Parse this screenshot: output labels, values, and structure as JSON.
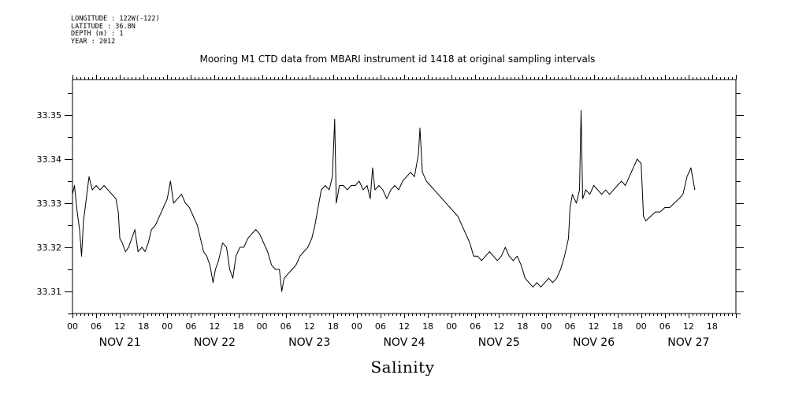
{
  "header": {
    "longitude": "LONGITUDE : 122W(-122)",
    "latitude": "LATITUDE : 36.8N",
    "depth": "DEPTH (m) : 1",
    "year": "YEAR : 2012"
  },
  "chart_data": {
    "type": "line",
    "title": "Mooring M1 CTD data from MBARI instrument id 1418 at original sampling intervals",
    "xlabel": "Salinity",
    "ylabel": "",
    "ylim": [
      33.305,
      33.358
    ],
    "xlim_hours": [
      0,
      168
    ],
    "yticks": [
      "33.31",
      "33.32",
      "33.33",
      "33.34",
      "33.35"
    ],
    "ytick_values": [
      33.31,
      33.32,
      33.33,
      33.34,
      33.35
    ],
    "xtick_hour_labels": [
      "00",
      "06",
      "12",
      "18",
      "00",
      "06",
      "12",
      "18",
      "00",
      "06",
      "12",
      "18",
      "00",
      "06",
      "12",
      "18",
      "00",
      "06",
      "12",
      "18",
      "00",
      "06",
      "12",
      "18",
      "00",
      "06",
      "12",
      "18"
    ],
    "day_labels": [
      "NOV 21",
      "NOV 22",
      "NOV 23",
      "NOV 24",
      "NOV 25",
      "NOV 26",
      "NOV 27"
    ],
    "grid": false,
    "series": [
      {
        "points": [
          [
            0,
            33.332
          ],
          [
            0.5,
            33.334
          ],
          [
            1.2,
            33.328
          ],
          [
            1.8,
            33.324
          ],
          [
            2.3,
            33.318
          ],
          [
            2.8,
            33.326
          ],
          [
            3.5,
            33.331
          ],
          [
            4.2,
            33.336
          ],
          [
            5,
            33.333
          ],
          [
            6,
            33.334
          ],
          [
            7,
            33.333
          ],
          [
            8,
            33.334
          ],
          [
            9,
            33.333
          ],
          [
            10,
            33.332
          ],
          [
            11,
            33.331
          ],
          [
            11.6,
            33.328
          ],
          [
            12,
            33.322
          ],
          [
            12.6,
            33.321
          ],
          [
            13.4,
            33.319
          ],
          [
            14.2,
            33.32
          ],
          [
            15,
            33.322
          ],
          [
            15.8,
            33.324
          ],
          [
            16.6,
            33.319
          ],
          [
            17.6,
            33.32
          ],
          [
            18.4,
            33.319
          ],
          [
            19.2,
            33.321
          ],
          [
            20,
            33.324
          ],
          [
            21,
            33.325
          ],
          [
            22,
            33.327
          ],
          [
            23,
            33.329
          ],
          [
            24,
            33.331
          ],
          [
            24.8,
            33.335
          ],
          [
            25.6,
            33.33
          ],
          [
            26.6,
            33.331
          ],
          [
            27.6,
            33.332
          ],
          [
            28.6,
            33.33
          ],
          [
            29.6,
            33.329
          ],
          [
            30.6,
            33.327
          ],
          [
            31.6,
            33.325
          ],
          [
            32.4,
            33.322
          ],
          [
            33.2,
            33.319
          ],
          [
            34,
            33.318
          ],
          [
            34.8,
            33.316
          ],
          [
            35.6,
            33.312
          ],
          [
            36.2,
            33.315
          ],
          [
            37,
            33.317
          ],
          [
            38,
            33.321
          ],
          [
            39,
            33.32
          ],
          [
            39.8,
            33.315
          ],
          [
            40.6,
            33.313
          ],
          [
            41.4,
            33.318
          ],
          [
            42.4,
            33.32
          ],
          [
            43.4,
            33.32
          ],
          [
            44.4,
            33.322
          ],
          [
            45.4,
            33.323
          ],
          [
            46.4,
            33.324
          ],
          [
            47.4,
            33.323
          ],
          [
            48.4,
            33.321
          ],
          [
            49.4,
            33.319
          ],
          [
            50.4,
            33.316
          ],
          [
            51.4,
            33.315
          ],
          [
            52.4,
            33.315
          ],
          [
            53,
            33.31
          ],
          [
            53.6,
            33.313
          ],
          [
            54.6,
            33.314
          ],
          [
            55.6,
            33.315
          ],
          [
            56.6,
            33.316
          ],
          [
            57.6,
            33.318
          ],
          [
            58.6,
            33.319
          ],
          [
            59.6,
            33.32
          ],
          [
            60.6,
            33.322
          ],
          [
            61.4,
            33.325
          ],
          [
            62.2,
            33.329
          ],
          [
            63,
            33.333
          ],
          [
            64,
            33.334
          ],
          [
            65,
            33.333
          ],
          [
            65.8,
            33.336
          ],
          [
            66.4,
            33.349
          ],
          [
            66.8,
            33.33
          ],
          [
            67.6,
            33.334
          ],
          [
            68.6,
            33.334
          ],
          [
            69.6,
            33.333
          ],
          [
            70.6,
            33.334
          ],
          [
            71.6,
            33.334
          ],
          [
            72.6,
            33.335
          ],
          [
            73.6,
            33.333
          ],
          [
            74.6,
            33.334
          ],
          [
            75.4,
            33.331
          ],
          [
            76,
            33.338
          ],
          [
            76.6,
            33.333
          ],
          [
            77.6,
            33.334
          ],
          [
            78.6,
            33.333
          ],
          [
            79.6,
            33.331
          ],
          [
            80.6,
            33.333
          ],
          [
            81.6,
            33.334
          ],
          [
            82.6,
            33.333
          ],
          [
            83.6,
            33.335
          ],
          [
            84.6,
            33.336
          ],
          [
            85.6,
            33.337
          ],
          [
            86.6,
            33.336
          ],
          [
            87.6,
            33.341
          ],
          [
            88,
            33.347
          ],
          [
            88.6,
            33.337
          ],
          [
            89.6,
            33.335
          ],
          [
            90.6,
            33.334
          ],
          [
            91.6,
            33.333
          ],
          [
            92.6,
            33.332
          ],
          [
            93.6,
            33.331
          ],
          [
            94.6,
            33.33
          ],
          [
            95.6,
            33.329
          ],
          [
            96.6,
            33.328
          ],
          [
            97.6,
            33.327
          ],
          [
            98.6,
            33.325
          ],
          [
            99.6,
            33.323
          ],
          [
            100.6,
            33.321
          ],
          [
            101.6,
            33.318
          ],
          [
            102.6,
            33.318
          ],
          [
            103.6,
            33.317
          ],
          [
            104.6,
            33.318
          ],
          [
            105.6,
            33.319
          ],
          [
            106.6,
            33.318
          ],
          [
            107.6,
            33.317
          ],
          [
            108.6,
            33.318
          ],
          [
            109.6,
            33.32
          ],
          [
            110.6,
            33.318
          ],
          [
            111.6,
            33.317
          ],
          [
            112.6,
            33.318
          ],
          [
            113.6,
            33.316
          ],
          [
            114.6,
            33.313
          ],
          [
            115.6,
            33.312
          ],
          [
            116.6,
            33.311
          ],
          [
            117.6,
            33.312
          ],
          [
            118.6,
            33.311
          ],
          [
            119.6,
            33.312
          ],
          [
            120.6,
            33.313
          ],
          [
            121.6,
            33.312
          ],
          [
            122.6,
            33.313
          ],
          [
            123.6,
            33.315
          ],
          [
            124.6,
            33.318
          ],
          [
            125.6,
            33.322
          ],
          [
            126,
            33.329
          ],
          [
            126.6,
            33.332
          ],
          [
            127.6,
            33.33
          ],
          [
            128.4,
            33.333
          ],
          [
            128.8,
            33.351
          ],
          [
            129.2,
            33.331
          ],
          [
            130,
            33.333
          ],
          [
            131,
            33.332
          ],
          [
            132,
            33.334
          ],
          [
            133,
            33.333
          ],
          [
            134,
            33.332
          ],
          [
            135,
            33.333
          ],
          [
            136,
            33.332
          ],
          [
            137,
            33.333
          ],
          [
            138,
            33.334
          ],
          [
            139,
            33.335
          ],
          [
            140,
            33.334
          ],
          [
            141,
            33.336
          ],
          [
            142,
            33.338
          ],
          [
            143,
            33.34
          ],
          [
            144,
            33.339
          ],
          [
            144.6,
            33.327
          ],
          [
            145.2,
            33.326
          ],
          [
            146.4,
            33.327
          ],
          [
            147.6,
            33.328
          ],
          [
            148.8,
            33.328
          ],
          [
            150,
            33.329
          ],
          [
            151.2,
            33.329
          ],
          [
            152.4,
            33.33
          ],
          [
            153.6,
            33.331
          ],
          [
            154.6,
            33.332
          ],
          [
            155.6,
            33.336
          ],
          [
            156.6,
            33.338
          ],
          [
            157.6,
            33.333
          ]
        ]
      }
    ]
  }
}
